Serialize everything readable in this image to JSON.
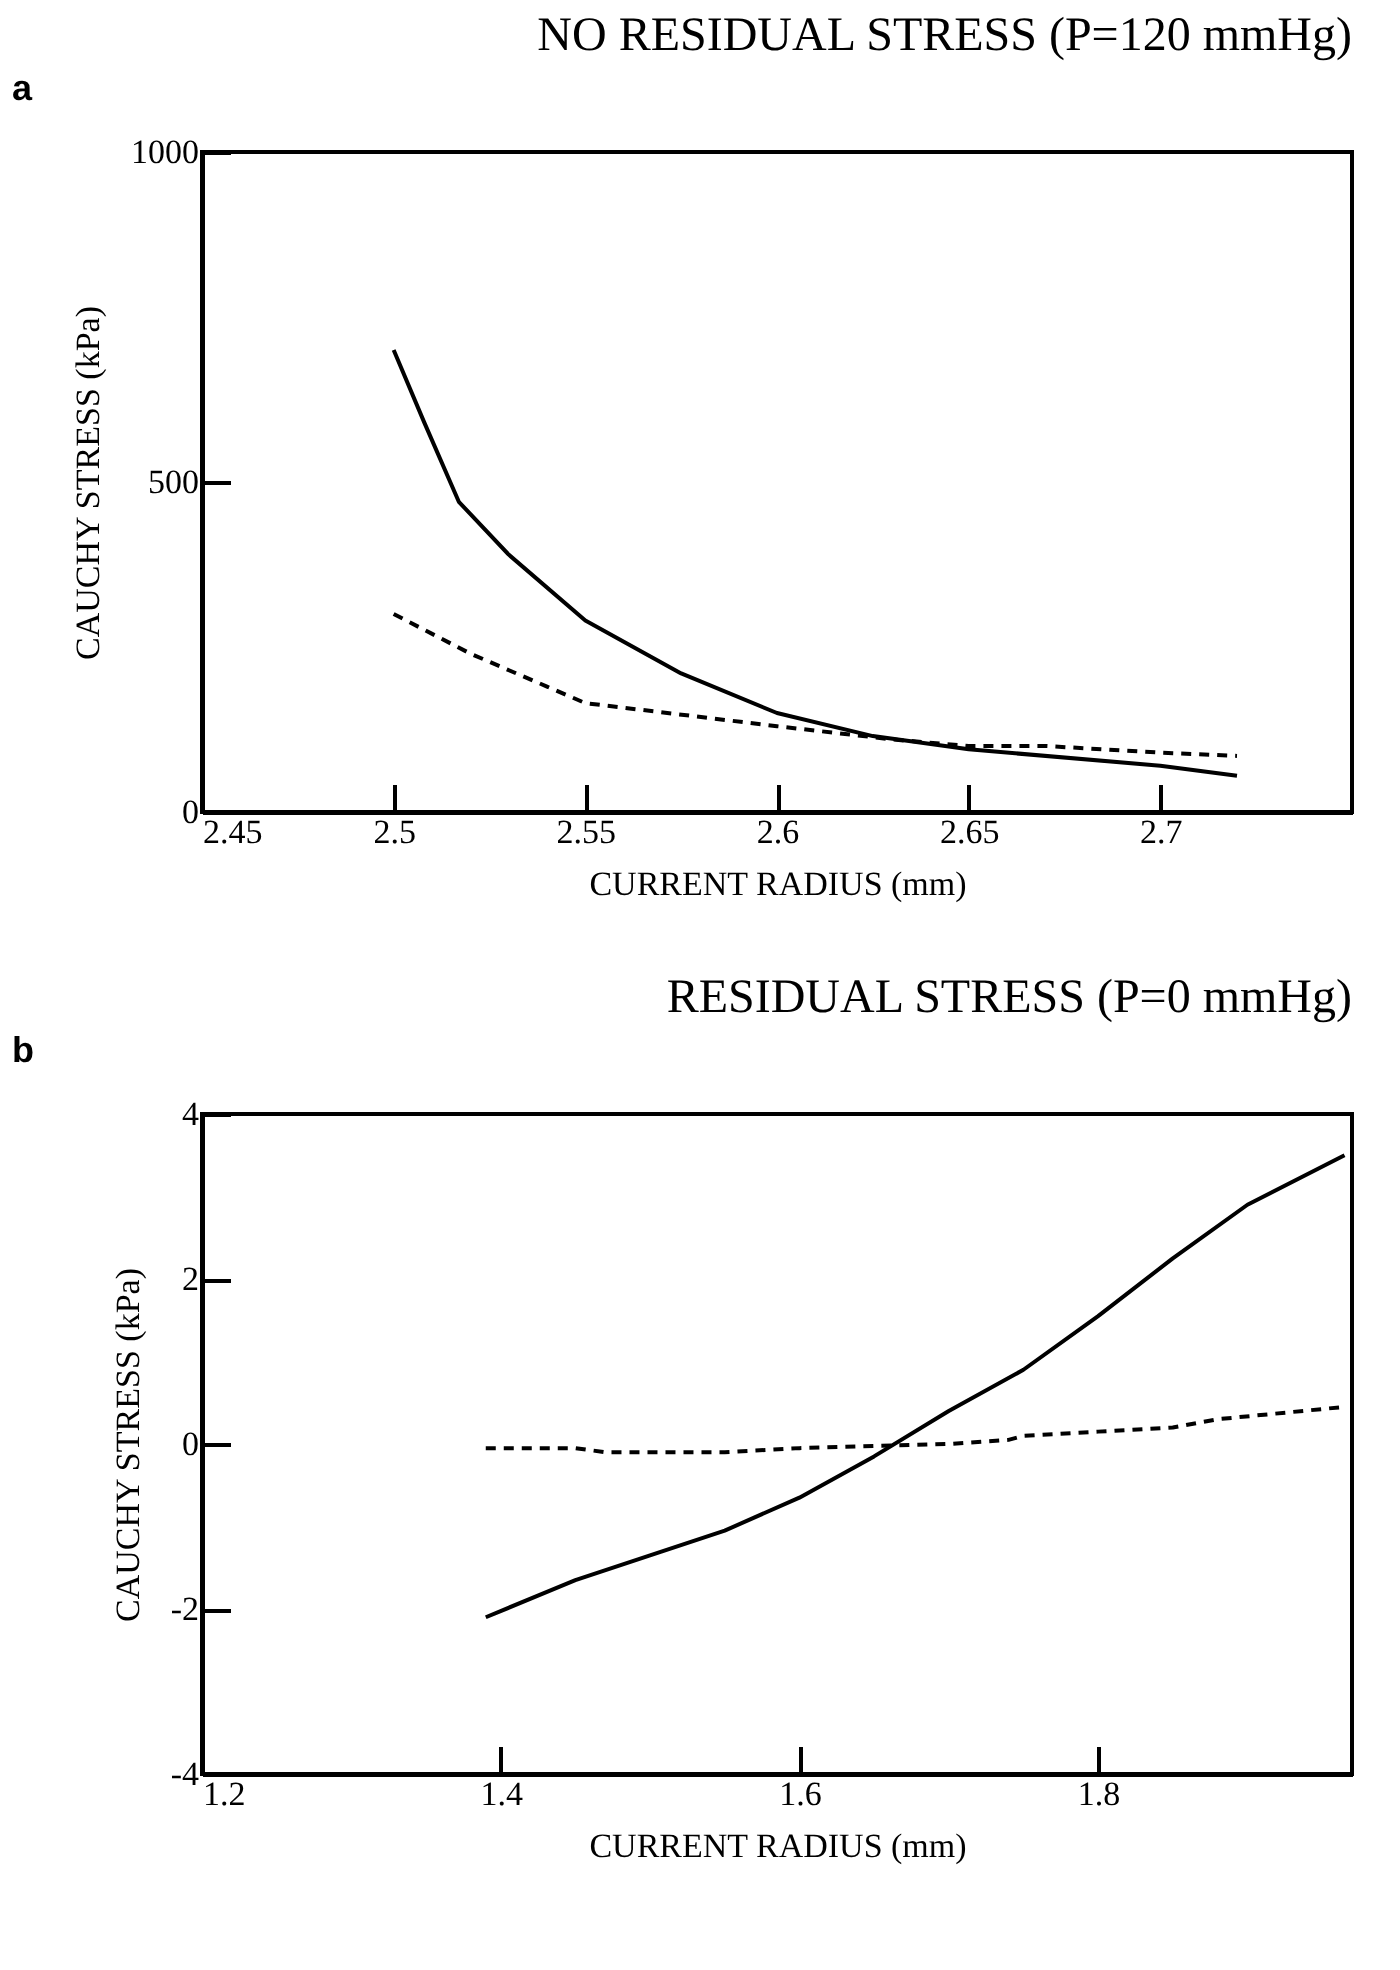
{
  "chart_data": [
    {
      "type": "line",
      "title": "NO RESIDUAL STRESS (P=120 mmHg)",
      "xlabel": "CURRENT RADIUS (mm)",
      "ylabel": "CAUCHY STRESS (kPa)",
      "annotations": [
        "a"
      ],
      "xlim": [
        2.45,
        2.75
      ],
      "xticks": [
        2.45,
        2.5,
        2.55,
        2.6,
        2.65,
        2.7
      ],
      "ylim": [
        0,
        1000
      ],
      "yticks": [
        0,
        500,
        1000
      ],
      "grid": false,
      "series": [
        {
          "color": "#000000",
          "line_style": "solid",
          "x": [
            2.5,
            2.508,
            2.517,
            2.53,
            2.55,
            2.575,
            2.6,
            2.625,
            2.65,
            2.7,
            2.72
          ],
          "values": [
            700,
            590,
            470,
            390,
            290,
            210,
            150,
            115,
            95,
            70,
            55
          ]
        },
        {
          "color": "#000000",
          "line_style": "dashed",
          "x": [
            2.5,
            2.52,
            2.54,
            2.55,
            2.6,
            2.63,
            2.65,
            2.67,
            2.7,
            2.72
          ],
          "values": [
            300,
            240,
            190,
            165,
            130,
            110,
            100,
            100,
            90,
            85
          ]
        }
      ]
    },
    {
      "type": "line",
      "title": "RESIDUAL STRESS (P=0 mmHg)",
      "xlabel": "CURRENT RADIUS (mm)",
      "ylabel": "CAUCHY STRESS (kPa)",
      "annotations": [
        "b"
      ],
      "xlim": [
        1.2,
        1.97
      ],
      "xticks": [
        1.2,
        1.4,
        1.6,
        1.8
      ],
      "ylim": [
        -4,
        4
      ],
      "yticks": [
        -4,
        -2,
        0,
        2,
        4
      ],
      "grid": false,
      "series": [
        {
          "color": "#000000",
          "line_style": "solid",
          "x": [
            1.39,
            1.45,
            1.5,
            1.55,
            1.6,
            1.65,
            1.7,
            1.75,
            1.8,
            1.85,
            1.9,
            1.965
          ],
          "values": [
            -2.1,
            -1.65,
            -1.35,
            -1.05,
            -0.65,
            -0.15,
            0.4,
            0.9,
            1.55,
            2.25,
            2.9,
            3.5
          ]
        },
        {
          "color": "#000000",
          "line_style": "dashed",
          "x": [
            1.39,
            1.45,
            1.47,
            1.55,
            1.6,
            1.7,
            1.74,
            1.75,
            1.8,
            1.85,
            1.88,
            1.965
          ],
          "values": [
            -0.05,
            -0.05,
            -0.1,
            -0.1,
            -0.05,
            0,
            0.05,
            0.1,
            0.15,
            0.2,
            0.3,
            0.45
          ]
        }
      ]
    }
  ]
}
